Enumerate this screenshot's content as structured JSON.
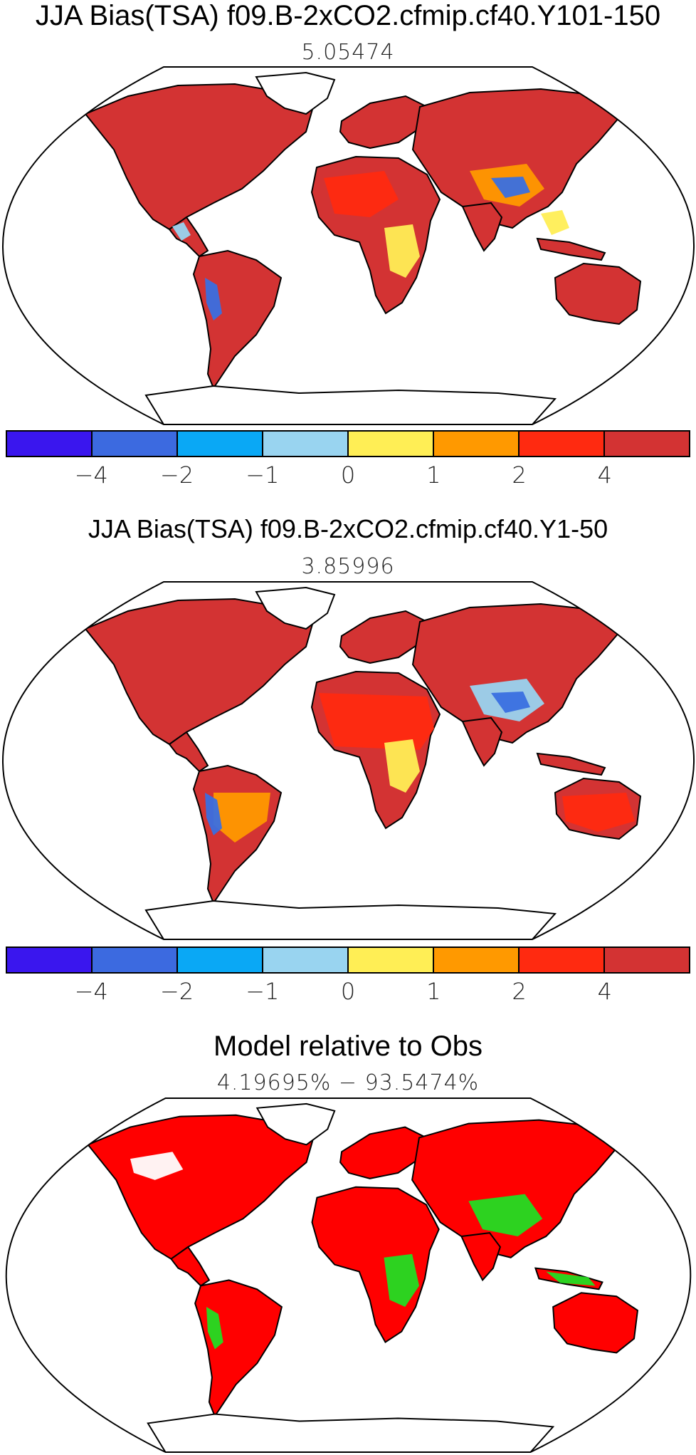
{
  "panels": [
    {
      "title": "JJA Bias(TSA) f09.B-2xCO2.cfmip.cf40.Y101-150",
      "subtitle": "5.05474",
      "land_color": "#d33333",
      "patches": [
        {
          "color": "#ff2a10",
          "region": "west-africa"
        },
        {
          "color": "#ffee55",
          "region": "central-africa"
        },
        {
          "color": "#ff9900",
          "region": "tibet"
        },
        {
          "color": "#3a6fe0",
          "region": "tibet-core"
        },
        {
          "color": "#3a6fe0",
          "region": "andes"
        },
        {
          "color": "#99d4f0",
          "region": "central-america"
        },
        {
          "color": "#ffee55",
          "region": "se-asia"
        }
      ]
    },
    {
      "title": "JJA Bias(TSA) f09.B-2xCO2.cfmip.cf40.Y1-50",
      "subtitle": "3.85996",
      "land_color": "#d33333",
      "patches": [
        {
          "color": "#ff2a10",
          "region": "africa"
        },
        {
          "color": "#ffee55",
          "region": "central-africa"
        },
        {
          "color": "#99d4f0",
          "region": "tibet"
        },
        {
          "color": "#3a6fe0",
          "region": "tibet-core"
        },
        {
          "color": "#ff9900",
          "region": "south-america"
        },
        {
          "color": "#3a6fe0",
          "region": "andes"
        },
        {
          "color": "#ff2a10",
          "region": "australia"
        }
      ]
    },
    {
      "title": "Model relative to Obs",
      "subtitle": "4.19695% − 93.5474%",
      "land_color": "#ff0000",
      "patches": [
        {
          "color": "#22dd22",
          "region": "tibet"
        },
        {
          "color": "#22dd22",
          "region": "andes"
        },
        {
          "color": "#22dd22",
          "region": "central-africa"
        },
        {
          "color": "#22dd22",
          "region": "indonesia"
        },
        {
          "color": "#ffffff",
          "region": "canada"
        }
      ]
    }
  ],
  "colorbar": {
    "colors": [
      "#3a16ee",
      "#3c6ae0",
      "#0aa8f5",
      "#99d4f0",
      "#ffee55",
      "#ff9900",
      "#ff2a10",
      "#d33333"
    ],
    "labels": [
      "−4",
      "−2",
      "−1",
      "0",
      "1",
      "2",
      "4"
    ]
  }
}
